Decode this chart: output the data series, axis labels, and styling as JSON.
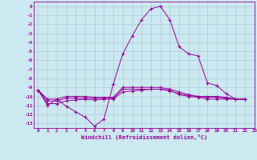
{
  "background_color": "#cce8f0",
  "grid_color": "#aaccd8",
  "line_color": "#990099",
  "xlabel": "Windchill (Refroidissement éolien,°C)",
  "xlim": [
    -0.5,
    23
  ],
  "ylim": [
    -13.5,
    0.5
  ],
  "xtick_vals": [
    0,
    1,
    2,
    3,
    4,
    5,
    6,
    7,
    8,
    9,
    10,
    11,
    12,
    13,
    14,
    15,
    16,
    17,
    18,
    19,
    20,
    21,
    22,
    23
  ],
  "ytick_vals": [
    0,
    -1,
    -2,
    -3,
    -4,
    -5,
    -6,
    -7,
    -8,
    -9,
    -10,
    -11,
    -12,
    -13
  ],
  "series": [
    {
      "x": [
        0,
        1,
        2,
        3,
        4,
        5,
        6,
        7,
        8,
        9,
        10,
        11,
        12,
        13,
        14,
        15,
        16,
        17,
        18,
        19,
        20,
        21,
        22
      ],
      "y": [
        -9.3,
        -11.0,
        -10.3,
        -11.1,
        -11.7,
        -12.3,
        -13.3,
        -12.5,
        -8.6,
        -5.3,
        -3.3,
        -1.5,
        -0.3,
        0.0,
        -1.5,
        -4.5,
        -5.3,
        -5.5,
        -8.5,
        -8.8,
        -9.7,
        -10.3,
        -10.3
      ]
    },
    {
      "x": [
        0,
        1,
        2,
        3,
        4,
        5,
        6,
        7,
        8,
        9,
        10,
        11,
        12,
        13,
        14,
        15,
        16,
        17,
        18,
        19,
        20,
        21,
        22
      ],
      "y": [
        -9.3,
        -10.3,
        -10.3,
        -10.0,
        -10.0,
        -10.0,
        -10.1,
        -10.1,
        -10.1,
        -9.0,
        -9.0,
        -9.0,
        -9.0,
        -9.0,
        -9.2,
        -9.5,
        -9.8,
        -10.0,
        -10.1,
        -10.1,
        -10.2,
        -10.3,
        -10.3
      ]
    },
    {
      "x": [
        0,
        1,
        2,
        3,
        4,
        5,
        6,
        7,
        8,
        9,
        10,
        11,
        12,
        13,
        14,
        15,
        16,
        17,
        18,
        19,
        20,
        21,
        22
      ],
      "y": [
        -9.3,
        -10.5,
        -10.5,
        -10.2,
        -10.2,
        -10.2,
        -10.2,
        -10.2,
        -10.2,
        -9.2,
        -9.2,
        -9.2,
        -9.2,
        -9.2,
        -9.4,
        -9.7,
        -9.9,
        -10.0,
        -10.0,
        -10.0,
        -10.1,
        -10.3,
        -10.3
      ]
    },
    {
      "x": [
        0,
        1,
        2,
        3,
        4,
        5,
        6,
        7,
        8,
        9,
        10,
        11,
        12,
        13,
        14,
        15,
        16,
        17,
        18,
        19,
        20,
        21,
        22
      ],
      "y": [
        -9.3,
        -10.8,
        -10.8,
        -10.5,
        -10.4,
        -10.3,
        -10.4,
        -10.3,
        -10.3,
        -9.5,
        -9.4,
        -9.3,
        -9.2,
        -9.2,
        -9.3,
        -9.8,
        -10.0,
        -10.1,
        -10.3,
        -10.3,
        -10.3,
        -10.3,
        -10.3
      ]
    }
  ]
}
